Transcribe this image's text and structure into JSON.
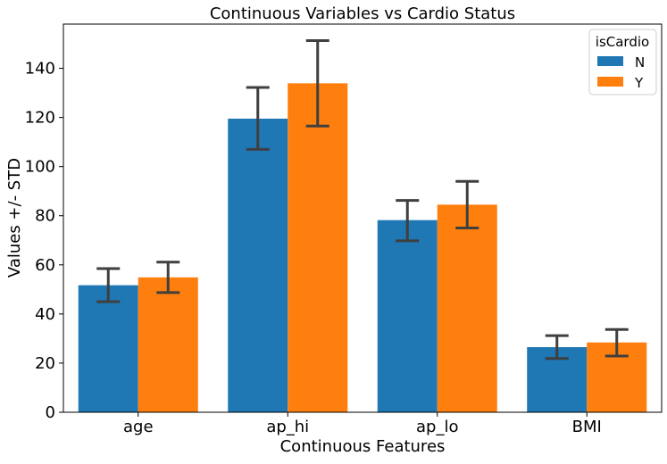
{
  "chart_data": {
    "type": "bar",
    "title": "Continuous Variables vs Cardio Status",
    "xlabel": "Continuous Features",
    "ylabel": "Values +/- STD",
    "categories": [
      "age",
      "ap_hi",
      "ap_lo",
      "BMI"
    ],
    "ylim": [
      0,
      158
    ],
    "yticks": [
      0,
      20,
      40,
      60,
      80,
      100,
      120,
      140
    ],
    "grid": false,
    "legend": {
      "title": "isCardio",
      "placement": "top-right"
    },
    "series": [
      {
        "name": "N",
        "color": "#1f77b4",
        "values": [
          51.7,
          119.5,
          78.2,
          26.5
        ],
        "err_low": [
          45.0,
          107.0,
          69.8,
          21.9
        ],
        "err_high": [
          58.5,
          132.2,
          86.2,
          31.2
        ]
      },
      {
        "name": "Y",
        "color": "#ff7f0e",
        "values": [
          54.9,
          133.9,
          84.5,
          28.4
        ],
        "err_low": [
          48.7,
          116.5,
          75.0,
          22.9
        ],
        "err_high": [
          61.1,
          151.3,
          94.0,
          33.7
        ]
      }
    ],
    "error_bar_color": "#3f3f3f"
  }
}
